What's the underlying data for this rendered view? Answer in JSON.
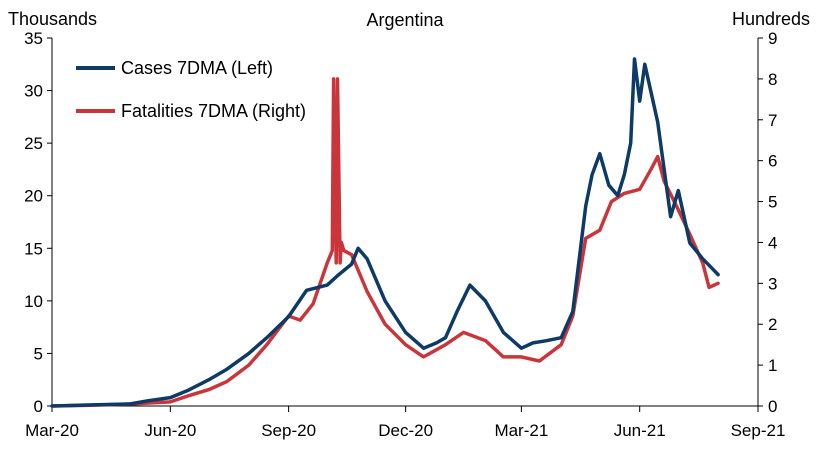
{
  "chart_data": {
    "type": "line",
    "title": "Argentina",
    "y_left_unit_label": "Thousands",
    "y_right_unit_label": "Hundreds",
    "x_tick_labels": [
      "Mar-20",
      "Jun-20",
      "Sep-20",
      "Dec-20",
      "Mar-21",
      "Jun-21",
      "Sep-21"
    ],
    "y_left_ticks": [
      "0",
      "5",
      "10",
      "15",
      "20",
      "25",
      "30",
      "35"
    ],
    "y_right_ticks": [
      "0",
      "1",
      "2",
      "3",
      "4",
      "5",
      "6",
      "7",
      "8",
      "9"
    ],
    "ylim_left": [
      0,
      35
    ],
    "ylim_right": [
      0,
      9
    ],
    "grid": false,
    "legend_position": "top-left",
    "colors": {
      "cases": "#0d3a66",
      "fatalities": "#c9353a"
    },
    "series": [
      {
        "name": "Cases 7DMA (Left)",
        "axis": "left",
        "x": [
          "2020-03-01",
          "2020-04-01",
          "2020-05-01",
          "2020-05-15",
          "2020-06-01",
          "2020-06-15",
          "2020-07-01",
          "2020-07-15",
          "2020-08-01",
          "2020-08-15",
          "2020-09-01",
          "2020-09-15",
          "2020-10-01",
          "2020-10-10",
          "2020-10-20",
          "2020-10-25",
          "2020-11-01",
          "2020-11-15",
          "2020-12-01",
          "2020-12-15",
          "2020-12-25",
          "2021-01-01",
          "2021-01-10",
          "2021-01-20",
          "2021-02-01",
          "2021-02-15",
          "2021-03-01",
          "2021-03-10",
          "2021-03-20",
          "2021-04-01",
          "2021-04-10",
          "2021-04-20",
          "2021-04-25",
          "2021-05-01",
          "2021-05-08",
          "2021-05-15",
          "2021-05-20",
          "2021-05-25",
          "2021-05-28",
          "2021-06-01",
          "2021-06-05",
          "2021-06-15",
          "2021-06-25",
          "2021-07-01",
          "2021-07-10",
          "2021-07-20",
          "2021-07-28",
          "2021-08-01"
        ],
        "values": [
          0,
          0.1,
          0.2,
          0.5,
          0.8,
          1.5,
          2.5,
          3.5,
          5,
          6.5,
          8.5,
          11,
          11.5,
          12.5,
          13.5,
          15,
          14,
          10,
          7,
          5.5,
          6,
          6.5,
          9,
          11.5,
          10,
          7,
          5.5,
          6,
          6.2,
          6.5,
          9,
          19,
          22,
          24,
          21,
          20,
          22,
          25,
          33,
          29,
          32.5,
          27,
          18,
          20.5,
          15.5,
          14,
          13,
          12.5
        ]
      },
      {
        "name": "Fatalities 7DMA (Right)",
        "axis": "right",
        "x": [
          "2020-03-01",
          "2020-04-01",
          "2020-05-01",
          "2020-06-01",
          "2020-06-15",
          "2020-07-01",
          "2020-07-15",
          "2020-08-01",
          "2020-08-15",
          "2020-09-01",
          "2020-09-10",
          "2020-09-20",
          "2020-10-01",
          "2020-10-05",
          "2020-10-06",
          "2020-10-08",
          "2020-10-09",
          "2020-10-11",
          "2020-10-12",
          "2020-10-14",
          "2020-10-20",
          "2020-11-01",
          "2020-11-15",
          "2020-12-01",
          "2020-12-15",
          "2021-01-01",
          "2021-01-15",
          "2021-02-01",
          "2021-02-15",
          "2021-03-01",
          "2021-03-15",
          "2021-04-01",
          "2021-04-10",
          "2021-04-20",
          "2021-05-01",
          "2021-05-10",
          "2021-05-20",
          "2021-06-01",
          "2021-06-10",
          "2021-06-15",
          "2021-06-20",
          "2021-07-01",
          "2021-07-10",
          "2021-07-20",
          "2021-07-25",
          "2021-08-01"
        ],
        "values": [
          0,
          0.02,
          0.05,
          0.1,
          0.25,
          0.4,
          0.6,
          1,
          1.5,
          2.2,
          2.1,
          2.5,
          3.5,
          3.8,
          8,
          3.5,
          8,
          3.5,
          4,
          3.8,
          3.7,
          2.8,
          2,
          1.5,
          1.2,
          1.5,
          1.8,
          1.6,
          1.2,
          1.2,
          1.1,
          1.5,
          2.2,
          4.1,
          4.3,
          5,
          5.2,
          5.3,
          5.8,
          6.1,
          5.5,
          4.8,
          4.2,
          3.5,
          2.9,
          3
        ]
      }
    ]
  }
}
